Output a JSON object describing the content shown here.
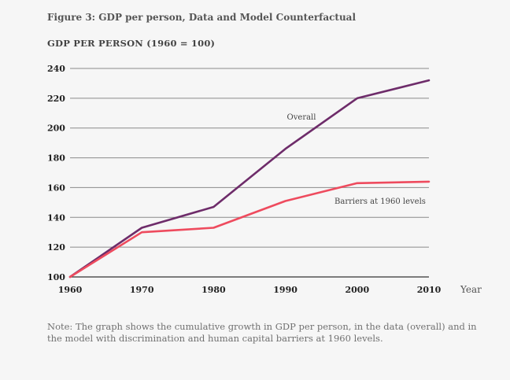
{
  "figure_title": "Figure 3: GDP per person, Data and Model Counterfactual",
  "note": "Note: The graph shows the cumulative growth in GDP per person, in the data (overall) and in the model with discrimination and human capital barriers at 1960 levels.",
  "chart_data": {
    "type": "line",
    "ylabel": "GDP PER PERSON (1960 = 100)",
    "xlabel": "Year",
    "x": [
      1960,
      1970,
      1980,
      1990,
      2000,
      2010
    ],
    "xlim": [
      1960,
      2010
    ],
    "ylim": [
      100,
      240
    ],
    "yticks": [
      100,
      120,
      140,
      160,
      180,
      200,
      220,
      240
    ],
    "grid": true,
    "series": [
      {
        "name": "Overall",
        "color": "#6e2c6a",
        "values": [
          100,
          133,
          147,
          186,
          220,
          232
        ]
      },
      {
        "name": "Barriers at 1960 levels",
        "color": "#ee4b5e",
        "values": [
          100,
          130,
          133,
          151,
          163,
          164
        ]
      }
    ]
  }
}
